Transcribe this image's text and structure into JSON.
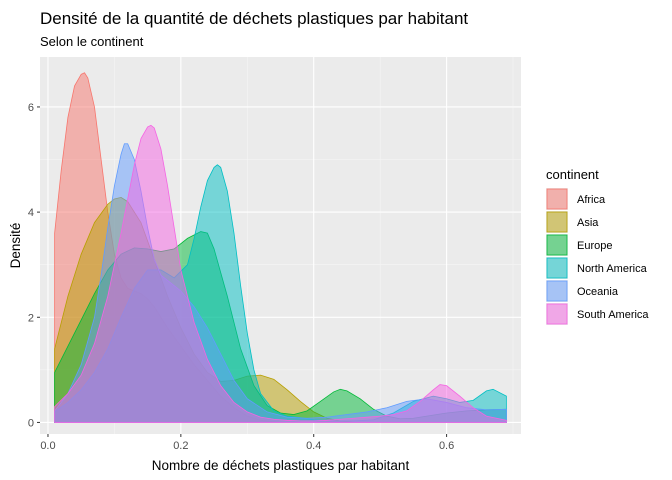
{
  "chart_data": {
    "type": "area",
    "title": "Densité de la quantité de déchets plastiques par habitant",
    "subtitle": "Selon le continent",
    "xlabel": "Nombre de déchets plastiques par habitant",
    "ylabel": "Densité",
    "xlim": [
      -0.012,
      0.712
    ],
    "ylim": [
      -0.22,
      6.95
    ],
    "x_ticks": [
      0.0,
      0.2,
      0.4,
      0.6
    ],
    "x_tick_labels": [
      "0.0",
      "0.2",
      "0.4",
      "0.6"
    ],
    "x_minor_ticks": [
      0.1,
      0.3,
      0.5,
      0.7
    ],
    "y_ticks": [
      0,
      2,
      4,
      6
    ],
    "y_tick_labels": [
      "0",
      "2",
      "4",
      "6"
    ],
    "y_minor_ticks": [
      1,
      3,
      5
    ],
    "grid": true,
    "legend_title": "continent",
    "legend_position": "right",
    "alpha": 0.5,
    "series": [
      {
        "name": "Africa",
        "color": "#F8766D",
        "x": [
          0.01,
          0.02,
          0.03,
          0.04,
          0.05,
          0.055,
          0.06,
          0.07,
          0.08,
          0.09,
          0.1,
          0.11,
          0.12,
          0.13,
          0.14,
          0.15,
          0.16,
          0.17,
          0.18,
          0.2,
          0.22,
          0.24,
          0.26,
          0.28,
          0.3,
          0.32,
          0.35
        ],
        "y": [
          3.6,
          4.8,
          5.8,
          6.4,
          6.62,
          6.65,
          6.55,
          6.0,
          5.0,
          4.0,
          3.2,
          2.75,
          2.55,
          2.5,
          2.45,
          2.35,
          2.2,
          2.0,
          1.8,
          1.45,
          1.1,
          0.8,
          0.5,
          0.28,
          0.12,
          0.04,
          0.0
        ]
      },
      {
        "name": "Asia",
        "color": "#B79F00",
        "x": [
          0.01,
          0.03,
          0.05,
          0.07,
          0.09,
          0.1,
          0.11,
          0.12,
          0.14,
          0.16,
          0.18,
          0.2,
          0.22,
          0.24,
          0.26,
          0.28,
          0.3,
          0.32,
          0.34,
          0.36,
          0.38,
          0.4,
          0.42,
          0.44,
          0.46
        ],
        "y": [
          1.4,
          2.4,
          3.2,
          3.8,
          4.15,
          4.25,
          4.28,
          4.2,
          3.8,
          3.1,
          2.4,
          1.8,
          1.3,
          0.95,
          0.78,
          0.8,
          0.88,
          0.9,
          0.82,
          0.62,
          0.4,
          0.2,
          0.08,
          0.03,
          0.0
        ]
      },
      {
        "name": "Europe",
        "color": "#00BA38",
        "x": [
          0.01,
          0.03,
          0.05,
          0.07,
          0.09,
          0.11,
          0.13,
          0.15,
          0.17,
          0.19,
          0.21,
          0.23,
          0.24,
          0.25,
          0.27,
          0.29,
          0.31,
          0.33,
          0.35,
          0.37,
          0.39,
          0.41,
          0.43,
          0.44,
          0.45,
          0.47,
          0.49,
          0.51,
          0.53,
          0.55,
          0.57,
          0.6,
          0.63,
          0.66,
          0.69
        ],
        "y": [
          0.95,
          1.45,
          1.95,
          2.45,
          2.9,
          3.2,
          3.32,
          3.3,
          3.25,
          3.3,
          3.5,
          3.63,
          3.6,
          3.3,
          2.4,
          1.4,
          0.7,
          0.32,
          0.18,
          0.15,
          0.22,
          0.4,
          0.58,
          0.63,
          0.6,
          0.45,
          0.25,
          0.12,
          0.07,
          0.08,
          0.12,
          0.18,
          0.22,
          0.24,
          0.25
        ]
      },
      {
        "name": "North America",
        "color": "#00BFC4",
        "x": [
          0.01,
          0.03,
          0.05,
          0.07,
          0.09,
          0.11,
          0.13,
          0.15,
          0.17,
          0.19,
          0.21,
          0.22,
          0.23,
          0.24,
          0.25,
          0.255,
          0.26,
          0.27,
          0.28,
          0.29,
          0.3,
          0.31,
          0.32,
          0.34,
          0.36,
          0.38,
          0.4,
          0.43,
          0.46,
          0.49,
          0.52,
          0.55,
          0.58,
          0.6,
          0.62,
          0.64,
          0.66,
          0.67,
          0.69
        ],
        "y": [
          0.2,
          0.38,
          0.62,
          0.95,
          1.4,
          2.0,
          2.55,
          2.9,
          2.9,
          2.75,
          3.0,
          3.5,
          4.1,
          4.6,
          4.85,
          4.9,
          4.85,
          4.4,
          3.6,
          2.6,
          1.7,
          1.0,
          0.55,
          0.22,
          0.12,
          0.09,
          0.05,
          0.03,
          0.03,
          0.05,
          0.18,
          0.4,
          0.5,
          0.45,
          0.38,
          0.42,
          0.6,
          0.63,
          0.5
        ]
      },
      {
        "name": "Oceania",
        "color": "#619CFF",
        "x": [
          0.01,
          0.03,
          0.05,
          0.07,
          0.08,
          0.09,
          0.1,
          0.11,
          0.115,
          0.12,
          0.13,
          0.14,
          0.15,
          0.16,
          0.17,
          0.18,
          0.19,
          0.2,
          0.22,
          0.24,
          0.26,
          0.28,
          0.3,
          0.33,
          0.36,
          0.39,
          0.42,
          0.45,
          0.48,
          0.51,
          0.54,
          0.57,
          0.6,
          0.63,
          0.66,
          0.69
        ],
        "y": [
          0.22,
          0.55,
          1.1,
          2.0,
          2.8,
          3.7,
          4.5,
          5.1,
          5.3,
          5.3,
          5.0,
          4.4,
          3.7,
          3.1,
          2.8,
          2.7,
          2.6,
          2.5,
          2.2,
          1.8,
          1.3,
          0.8,
          0.45,
          0.2,
          0.1,
          0.08,
          0.1,
          0.15,
          0.2,
          0.28,
          0.4,
          0.45,
          0.38,
          0.28,
          0.24,
          0.25
        ]
      },
      {
        "name": "South America",
        "color": "#F564E3",
        "x": [
          0.01,
          0.03,
          0.05,
          0.07,
          0.09,
          0.11,
          0.13,
          0.14,
          0.15,
          0.155,
          0.16,
          0.17,
          0.18,
          0.19,
          0.2,
          0.22,
          0.24,
          0.26,
          0.28,
          0.3,
          0.32,
          0.34,
          0.36,
          0.38,
          0.4,
          0.42,
          0.44,
          0.46,
          0.48,
          0.5,
          0.52,
          0.54,
          0.56,
          0.58,
          0.59,
          0.6,
          0.62,
          0.64,
          0.66,
          0.69
        ],
        "y": [
          0.3,
          0.55,
          0.9,
          1.5,
          2.4,
          3.6,
          4.9,
          5.4,
          5.62,
          5.65,
          5.6,
          5.2,
          4.5,
          3.7,
          2.9,
          1.9,
          1.2,
          0.7,
          0.38,
          0.2,
          0.1,
          0.06,
          0.04,
          0.03,
          0.03,
          0.04,
          0.06,
          0.08,
          0.1,
          0.12,
          0.15,
          0.22,
          0.4,
          0.62,
          0.72,
          0.7,
          0.5,
          0.28,
          0.12,
          0.04
        ]
      }
    ]
  }
}
